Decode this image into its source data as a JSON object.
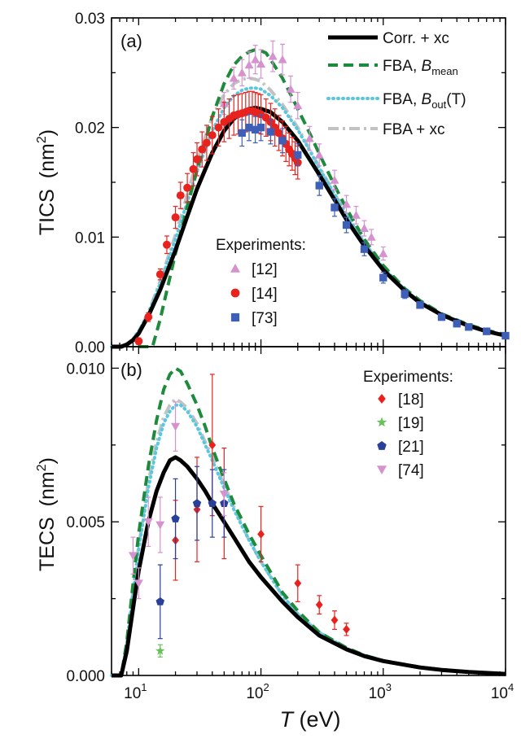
{
  "chart_data": [
    {
      "panel_label": "(a)",
      "type": "line",
      "x_scale": "log",
      "xlim": [
        6,
        10000
      ],
      "ylim": [
        0,
        0.03
      ],
      "ylabel_main": "TICS",
      "ylabel_unit": "(nm",
      "ylabel_sup": "2",
      "ylabel_close": ")",
      "y_ticks": [
        "0.00",
        "0.01",
        "0.02",
        "0.03"
      ],
      "y_tick_values": [
        0,
        0.01,
        0.02,
        0.03
      ],
      "legend_position": "top-right",
      "legend": [
        {
          "text_main": "Corr. + xc",
          "text_italic": "",
          "text_sub": "",
          "text_close": ""
        },
        {
          "text_main": "FBA, ",
          "text_italic": "B",
          "text_sub": "mean",
          "text_close": ""
        },
        {
          "text_main": "FBA, ",
          "text_italic": "B",
          "text_sub": "out",
          "text_close": "(T)"
        },
        {
          "text_main": "FBA + xc",
          "text_italic": "",
          "text_sub": "",
          "text_close": ""
        }
      ],
      "experiments_title": "Experiments:",
      "series": [
        {
          "name": "Corr. + xc",
          "color": "#000000",
          "style": "solid",
          "x": [
            6,
            7.2,
            8,
            9,
            10,
            12,
            15,
            20,
            25,
            30,
            40,
            50,
            60,
            70,
            80,
            90,
            100,
            120,
            150,
            200,
            250,
            300,
            400,
            500,
            700,
            1000,
            1500,
            2000,
            3000,
            5000,
            7000,
            10000
          ],
          "y": [
            0,
            0,
            0.0002,
            0.0006,
            0.0012,
            0.0028,
            0.0052,
            0.0088,
            0.0119,
            0.0144,
            0.0177,
            0.0197,
            0.0208,
            0.0214,
            0.0217,
            0.0218,
            0.0217,
            0.0214,
            0.0205,
            0.0188,
            0.0171,
            0.0157,
            0.0134,
            0.0116,
            0.0092,
            0.007,
            0.0051,
            0.004,
            0.0029,
            0.0019,
            0.0014,
            0.001
          ]
        },
        {
          "name": "FBA, Bmean",
          "color": "#1e8a3c",
          "style": "dash",
          "x": [
            10,
            13,
            15,
            20,
            25,
            30,
            40,
            50,
            60,
            70,
            80,
            90,
            100,
            110,
            120,
            150,
            200,
            250,
            300,
            400,
            500,
            700,
            1000,
            1500,
            2000,
            3000,
            5000,
            7000,
            10000
          ],
          "y": [
            0,
            0,
            0.0025,
            0.0085,
            0.0128,
            0.0161,
            0.021,
            0.024,
            0.0257,
            0.0265,
            0.0269,
            0.0271,
            0.027,
            0.0268,
            0.0262,
            0.0245,
            0.0217,
            0.0195,
            0.0176,
            0.0147,
            0.0126,
            0.0098,
            0.0074,
            0.0053,
            0.0042,
            0.003,
            0.002,
            0.0015,
            0.0011
          ]
        },
        {
          "name": "FBA, Bout(T)",
          "color": "#58c8e0",
          "style": "dot",
          "x": [
            6,
            7.2,
            8,
            9,
            10,
            12,
            15,
            20,
            25,
            30,
            40,
            50,
            60,
            70,
            80,
            90,
            100,
            120,
            150,
            200,
            250,
            300,
            400,
            500,
            700,
            1000,
            1500,
            2000,
            3000,
            5000,
            7000,
            10000
          ],
          "y": [
            0,
            0,
            0.0002,
            0.0007,
            0.0014,
            0.003,
            0.0058,
            0.0098,
            0.0132,
            0.016,
            0.0197,
            0.0218,
            0.0229,
            0.0234,
            0.0236,
            0.0236,
            0.0235,
            0.0229,
            0.0218,
            0.0198,
            0.0179,
            0.0163,
            0.0139,
            0.012,
            0.0095,
            0.0072,
            0.0052,
            0.0041,
            0.0029,
            0.0019,
            0.0014,
            0.001
          ]
        },
        {
          "name": "FBA + xc",
          "color": "#c2c2c2",
          "style": "dashdot",
          "x": [
            6,
            7.2,
            8,
            9,
            10,
            12,
            15,
            20,
            25,
            30,
            40,
            50,
            60,
            70,
            80,
            90,
            100,
            120,
            150,
            200,
            250,
            300,
            400,
            500,
            700,
            1000,
            1500,
            2000,
            3000,
            5000,
            7000,
            10000
          ],
          "y": [
            0,
            0,
            0.0002,
            0.0007,
            0.0014,
            0.0031,
            0.006,
            0.0102,
            0.0139,
            0.017,
            0.021,
            0.023,
            0.024,
            0.0244,
            0.0245,
            0.0244,
            0.0242,
            0.0234,
            0.0221,
            0.02,
            0.018,
            0.0164,
            0.014,
            0.012,
            0.0095,
            0.0072,
            0.0052,
            0.0041,
            0.0029,
            0.0019,
            0.0014,
            0.001
          ]
        }
      ],
      "experiments": [
        {
          "ref": "[12]",
          "color": "#d592cf",
          "marker": "triangle-up",
          "x": [
            50,
            60,
            70,
            80,
            90,
            100,
            125,
            150,
            175,
            200,
            250,
            300,
            400,
            500,
            600,
            700,
            800,
            1000
          ],
          "y": [
            0.0222,
            0.0245,
            0.025,
            0.0257,
            0.0262,
            0.0258,
            0.0265,
            0.0262,
            0.0235,
            0.022,
            0.019,
            0.0175,
            0.0152,
            0.013,
            0.012,
            0.0108,
            0.01,
            0.0085
          ],
          "err": [
            0.001,
            0.001,
            0.0012,
            0.0012,
            0.0013,
            0.0013,
            0.0014,
            0.0014,
            0.0012,
            0.0012,
            0.0011,
            0.001,
            0.0009,
            0.0008,
            0.0008,
            0.0007,
            0.0007,
            0.0006
          ]
        },
        {
          "ref": "[14]",
          "color": "#e8231e",
          "marker": "circle",
          "x": [
            10,
            12,
            15,
            17,
            20,
            22,
            25,
            28,
            30,
            33,
            36,
            40,
            45,
            50,
            55,
            60,
            65,
            70,
            75,
            80,
            85,
            90,
            95,
            100,
            110,
            120,
            130,
            140,
            150,
            160,
            170,
            180,
            190,
            200
          ],
          "y": [
            0.0005,
            0.0027,
            0.0066,
            0.0093,
            0.0118,
            0.0138,
            0.0145,
            0.0162,
            0.0171,
            0.018,
            0.0186,
            0.0193,
            0.02,
            0.0205,
            0.0208,
            0.0211,
            0.0212,
            0.0213,
            0.0214,
            0.0215,
            0.0215,
            0.0214,
            0.0213,
            0.0212,
            0.0209,
            0.0205,
            0.02,
            0.0195,
            0.019,
            0.0185,
            0.018,
            0.0176,
            0.0172,
            0.0168
          ],
          "err": [
            0.0003,
            0.0004,
            0.0005,
            0.0008,
            0.001,
            0.0012,
            0.0013,
            0.0015,
            0.0015,
            0.0016,
            0.0016,
            0.0017,
            0.0017,
            0.0018,
            0.0018,
            0.0018,
            0.0018,
            0.0018,
            0.0018,
            0.0018,
            0.0018,
            0.0018,
            0.0018,
            0.0018,
            0.0017,
            0.0017,
            0.0017,
            0.0016,
            0.0016,
            0.0016,
            0.0015,
            0.0015,
            0.0015,
            0.0015
          ]
        },
        {
          "ref": "[73]",
          "color": "#3d5fb7",
          "marker": "square",
          "x": [
            70,
            80,
            90,
            100,
            120,
            150,
            200,
            300,
            400,
            500,
            700,
            1000,
            1500,
            2000,
            3000,
            4000,
            5000,
            7000,
            10000
          ],
          "y": [
            0.0195,
            0.02,
            0.0198,
            0.02,
            0.0196,
            0.0188,
            0.0175,
            0.0147,
            0.0127,
            0.0111,
            0.0089,
            0.0063,
            0.0048,
            0.0038,
            0.0027,
            0.0021,
            0.0018,
            0.0014,
            0.001
          ],
          "err": [
            0.0012,
            0.0012,
            0.0012,
            0.0012,
            0.0011,
            0.0011,
            0.001,
            0.0009,
            0.0008,
            0.0007,
            0.0006,
            0.0005,
            0.0004,
            0.0003,
            0.0002,
            0.0002,
            0.0002,
            0.0001,
            0.0001
          ]
        }
      ]
    },
    {
      "panel_label": "(b)",
      "type": "line",
      "x_scale": "log",
      "xlim": [
        6,
        10000
      ],
      "ylim": [
        0,
        0.0107
      ],
      "xlabel_italic": "T",
      "xlabel_rest": " (eV)",
      "x_tick_base": [
        "10",
        "10",
        "10",
        "10"
      ],
      "x_tick_exp": [
        "1",
        "2",
        "3",
        "4"
      ],
      "x_tick_values": [
        10,
        100,
        1000,
        10000
      ],
      "ylabel_main": "TECS",
      "ylabel_unit": "(nm",
      "ylabel_sup": "2",
      "ylabel_close": ")",
      "y_ticks": [
        "0.000",
        "0.005",
        "0.010"
      ],
      "y_tick_values": [
        0,
        0.005,
        0.01
      ],
      "experiments_title": "Experiments:",
      "series": [
        {
          "name": "Corr. + xc",
          "color": "#000000",
          "style": "solid",
          "x": [
            6,
            7.2,
            8,
            9,
            10,
            12,
            14,
            16,
            18,
            20,
            22,
            25,
            30,
            35,
            40,
            50,
            60,
            80,
            100,
            150,
            200,
            300,
            500,
            700,
            1000,
            2000,
            3000,
            5000,
            10000
          ],
          "y": [
            0,
            0,
            0.0008,
            0.0022,
            0.0034,
            0.005,
            0.006,
            0.0066,
            0.007,
            0.0071,
            0.007,
            0.0068,
            0.0064,
            0.006,
            0.0056,
            0.005,
            0.0045,
            0.0037,
            0.0032,
            0.0024,
            0.0019,
            0.0013,
            0.00085,
            0.00063,
            0.00047,
            0.00026,
            0.00018,
            0.00011,
            5e-05
          ]
        },
        {
          "name": "FBA, Bmean",
          "color": "#1e8a3c",
          "style": "dash",
          "x": [
            6,
            7.2,
            8,
            9,
            10,
            12,
            14,
            16,
            18,
            20,
            22,
            25,
            30,
            35,
            40,
            50,
            60,
            80,
            100,
            150,
            200,
            300,
            500,
            700,
            1000,
            2000,
            3000,
            5000,
            10000
          ],
          "y": [
            0,
            0,
            0.0011,
            0.003,
            0.0046,
            0.0068,
            0.0083,
            0.0093,
            0.0098,
            0.01,
            0.0099,
            0.0095,
            0.0088,
            0.0081,
            0.0074,
            0.0064,
            0.0056,
            0.0046,
            0.0039,
            0.0027,
            0.0021,
            0.0014,
            0.0009,
            0.00066,
            0.00048,
            0.00027,
            0.00019,
            0.00011,
            5e-05
          ]
        },
        {
          "name": "FBA, Bout(T)",
          "color": "#58c8e0",
          "style": "dot",
          "x": [
            6,
            7.2,
            8,
            9,
            10,
            12,
            14,
            16,
            18,
            20,
            22,
            25,
            30,
            35,
            40,
            50,
            60,
            80,
            100,
            150,
            200,
            300,
            500,
            700,
            1000,
            2000,
            3000,
            5000,
            10000
          ],
          "y": [
            0,
            0,
            0.001,
            0.0027,
            0.0041,
            0.0061,
            0.0074,
            0.0082,
            0.0086,
            0.0088,
            0.0088,
            0.0086,
            0.0081,
            0.0075,
            0.007,
            0.0061,
            0.0054,
            0.0044,
            0.0037,
            0.0026,
            0.002,
            0.0014,
            0.00088,
            0.00065,
            0.00048,
            0.00027,
            0.00019,
            0.00011,
            5e-05
          ]
        },
        {
          "name": "FBA + xc",
          "color": "#c2c2c2",
          "style": "dashdot",
          "x": [
            6,
            7.2,
            8,
            9,
            10,
            12,
            14,
            16,
            18,
            20,
            22,
            25,
            30,
            35,
            40,
            50,
            60,
            80,
            100,
            150,
            200,
            300,
            500,
            700,
            1000,
            2000,
            3000,
            5000,
            10000
          ],
          "y": [
            0,
            0,
            0.001,
            0.0028,
            0.0042,
            0.0063,
            0.0076,
            0.0084,
            0.0088,
            0.009,
            0.0089,
            0.0087,
            0.0082,
            0.0076,
            0.0071,
            0.0062,
            0.0055,
            0.0044,
            0.0037,
            0.0026,
            0.002,
            0.0014,
            0.00088,
            0.00065,
            0.00048,
            0.00027,
            0.00019,
            0.00011,
            5e-05
          ]
        }
      ],
      "experiments": [
        {
          "ref": "[18]",
          "color": "#e8231e",
          "marker": "diamond",
          "x": [
            20,
            30,
            40,
            50,
            100,
            200,
            300,
            400,
            500
          ],
          "y": [
            0.0044,
            0.0054,
            0.0075,
            0.0056,
            0.0046,
            0.003,
            0.0023,
            0.0018,
            0.0015
          ],
          "err": [
            0.0013,
            0.0017,
            0.0023,
            0.0018,
            0.0009,
            0.0006,
            0.0003,
            0.0003,
            0.0002
          ]
        },
        {
          "ref": "[19]",
          "color": "#69c15a",
          "marker": "star",
          "x": [
            15
          ],
          "y": [
            0.0008
          ],
          "err": [
            0.0002
          ]
        },
        {
          "ref": "[21]",
          "color": "#2a3f99",
          "marker": "pentagon",
          "x": [
            15,
            20,
            30,
            40,
            50
          ],
          "y": [
            0.0024,
            0.0051,
            0.0056,
            0.0056,
            0.0056
          ],
          "err": [
            0.0012,
            0.0013,
            0.0012,
            0.0011,
            0.0011
          ]
        },
        {
          "ref": "[74]",
          "color": "#d592cf",
          "marker": "triangle-down",
          "x": [
            9,
            10,
            12,
            15,
            20,
            50
          ],
          "y": [
            0.0039,
            0.003,
            0.005,
            0.0049,
            0.0081,
            0.0059
          ],
          "err": [
            0.0006,
            0.0005,
            0.0008,
            0.0009,
            0.0008,
            0.0007
          ]
        }
      ]
    }
  ]
}
